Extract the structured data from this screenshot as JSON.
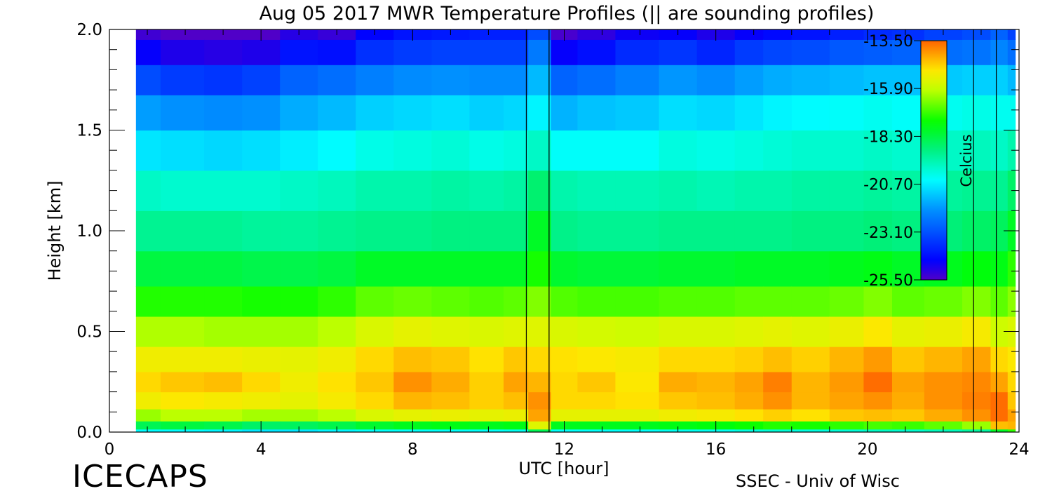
{
  "chart_data": {
    "type": "heatmap",
    "title": "Aug 05 2017 MWR Temperature Profiles (|| are sounding profiles)",
    "xlabel": "UTC [hour]",
    "ylabel": "Height [km]",
    "xlim": [
      0,
      24
    ],
    "ylim": [
      0,
      2.0
    ],
    "x_ticks": [
      0,
      4,
      8,
      12,
      16,
      20,
      24
    ],
    "x_tick_labels": [
      "0",
      "4",
      "8",
      "12",
      "16",
      "20",
      "24"
    ],
    "y_ticks": [
      0,
      0.5,
      1.0,
      1.5,
      2.0
    ],
    "y_tick_labels": [
      "0.0",
      "0.5",
      "1.0",
      "1.5",
      "2.0"
    ],
    "data_start_hour": 0.7,
    "data_end_hour": 23.9,
    "x_hours": [
      0.7,
      2,
      3,
      4,
      5,
      6,
      7,
      8,
      9,
      10,
      10.8,
      11.3,
      12,
      12.7,
      14,
      15,
      16,
      17,
      17.5,
      18.5,
      19.5,
      20.3,
      21,
      22,
      23,
      23.5,
      23.9
    ],
    "heights_km": [
      0.0,
      0.03,
      0.08,
      0.15,
      0.25,
      0.35,
      0.5,
      0.65,
      0.8,
      1.0,
      1.2,
      1.4,
      1.6,
      1.75,
      1.9,
      2.0
    ],
    "temperature_celsius": [
      [
        -20.5,
        -18.5,
        -16.3,
        -15.2,
        -14.8,
        -15.2,
        -16.1,
        -17.3,
        -18.3,
        -19.2,
        -19.8,
        -20.8,
        -21.8,
        -23.2,
        -24.6,
        -25.3
      ],
      [
        -20.5,
        -18.3,
        -16.0,
        -15.0,
        -14.6,
        -15.2,
        -16.1,
        -17.3,
        -18.3,
        -19.2,
        -19.9,
        -20.9,
        -22.0,
        -23.5,
        -24.9,
        -25.5
      ],
      [
        -20.6,
        -18.4,
        -16.0,
        -15.1,
        -14.5,
        -15.2,
        -16.2,
        -17.3,
        -18.3,
        -19.2,
        -19.9,
        -21.0,
        -22.1,
        -23.6,
        -25.0,
        -25.5
      ],
      [
        -20.8,
        -18.7,
        -16.2,
        -15.2,
        -14.8,
        -15.3,
        -16.2,
        -17.4,
        -18.4,
        -19.3,
        -19.9,
        -20.9,
        -22.0,
        -23.4,
        -24.9,
        -25.5
      ],
      [
        -20.8,
        -18.6,
        -16.2,
        -15.4,
        -15.2,
        -15.4,
        -16.2,
        -17.4,
        -18.4,
        -19.3,
        -19.8,
        -20.7,
        -21.6,
        -22.8,
        -24.2,
        -25.0
      ],
      [
        -20.6,
        -18.4,
        -16.0,
        -15.1,
        -14.9,
        -15.2,
        -16.0,
        -17.2,
        -18.3,
        -19.2,
        -19.7,
        -20.5,
        -21.4,
        -22.6,
        -24.3,
        -25.2
      ],
      [
        -20.4,
        -18.1,
        -15.6,
        -14.8,
        -14.6,
        -14.8,
        -15.6,
        -16.8,
        -18.0,
        -19.1,
        -19.5,
        -20.2,
        -21.1,
        -22.3,
        -23.7,
        -24.5
      ],
      [
        -20.4,
        -17.9,
        -15.4,
        -14.4,
        -14.0,
        -14.5,
        -15.4,
        -16.7,
        -18.0,
        -19.1,
        -19.5,
        -20.1,
        -21.0,
        -22.1,
        -23.5,
        -24.2
      ],
      [
        -20.4,
        -17.8,
        -15.3,
        -14.5,
        -14.3,
        -14.6,
        -15.5,
        -16.8,
        -18.0,
        -19.0,
        -19.4,
        -20.0,
        -20.9,
        -22.0,
        -23.4,
        -24.1
      ],
      [
        -20.4,
        -17.9,
        -15.4,
        -14.7,
        -14.7,
        -14.9,
        -15.6,
        -16.9,
        -18.0,
        -19.0,
        -19.5,
        -20.2,
        -21.1,
        -22.1,
        -23.4,
        -24.0
      ],
      [
        -20.3,
        -17.8,
        -15.3,
        -14.5,
        -14.2,
        -14.6,
        -15.5,
        -16.8,
        -18.0,
        -19.0,
        -19.4,
        -20.1,
        -21.0,
        -22.1,
        -23.4,
        -24.0
      ],
      [
        -18.5,
        -15.5,
        -14.2,
        -14.0,
        -14.4,
        -14.8,
        -15.5,
        -16.5,
        -17.4,
        -18.0,
        -18.8,
        -19.8,
        -20.6,
        -21.4,
        -22.4,
        -23.2
      ],
      [
        -20.4,
        -17.9,
        -15.4,
        -14.8,
        -14.8,
        -14.9,
        -15.6,
        -16.9,
        -18.1,
        -19.1,
        -19.5,
        -20.4,
        -21.5,
        -22.8,
        -24.6,
        -25.4
      ],
      [
        -20.4,
        -17.9,
        -15.4,
        -14.8,
        -14.6,
        -15.0,
        -15.7,
        -17.0,
        -18.2,
        -19.2,
        -19.6,
        -20.4,
        -21.3,
        -22.6,
        -24.3,
        -25.1
      ],
      [
        -20.4,
        -17.9,
        -15.4,
        -14.9,
        -15.0,
        -15.1,
        -15.8,
        -17.0,
        -18.2,
        -19.2,
        -19.6,
        -20.4,
        -21.2,
        -22.3,
        -23.8,
        -24.7
      ],
      [
        -20.3,
        -17.8,
        -15.2,
        -14.6,
        -14.3,
        -14.8,
        -15.6,
        -16.9,
        -18.1,
        -19.1,
        -19.5,
        -20.1,
        -20.9,
        -21.9,
        -23.6,
        -24.6
      ],
      [
        -20.3,
        -17.7,
        -15.1,
        -14.5,
        -14.4,
        -14.8,
        -15.6,
        -16.9,
        -18.1,
        -19.1,
        -19.6,
        -20.2,
        -21.0,
        -22.1,
        -23.9,
        -24.9
      ],
      [
        -20.1,
        -17.5,
        -14.9,
        -14.3,
        -14.2,
        -14.7,
        -15.5,
        -16.8,
        -18.0,
        -19.1,
        -19.5,
        -20.1,
        -20.8,
        -21.8,
        -23.5,
        -24.6
      ],
      [
        -20.0,
        -17.3,
        -14.7,
        -14.0,
        -13.8,
        -14.5,
        -15.4,
        -16.8,
        -18.0,
        -19.1,
        -19.5,
        -20.0,
        -20.6,
        -21.6,
        -23.3,
        -24.4
      ],
      [
        -20.1,
        -17.4,
        -14.9,
        -14.4,
        -14.4,
        -14.7,
        -15.5,
        -16.8,
        -18.0,
        -19.0,
        -19.4,
        -19.9,
        -20.5,
        -21.5,
        -23.2,
        -24.2
      ],
      [
        -20.0,
        -17.2,
        -14.6,
        -14.2,
        -14.1,
        -14.4,
        -15.3,
        -16.7,
        -17.9,
        -19.0,
        -19.4,
        -19.9,
        -20.4,
        -21.4,
        -23.0,
        -24.0
      ],
      [
        -19.8,
        -17.0,
        -14.5,
        -14.0,
        -13.6,
        -14.1,
        -15.0,
        -16.5,
        -17.8,
        -18.9,
        -19.3,
        -19.8,
        -20.3,
        -21.3,
        -22.9,
        -23.8
      ],
      [
        -19.9,
        -17.1,
        -14.6,
        -14.3,
        -14.2,
        -14.6,
        -15.4,
        -16.8,
        -18.0,
        -19.0,
        -19.4,
        -19.9,
        -20.4,
        -21.3,
        -22.8,
        -23.7
      ],
      [
        -19.7,
        -16.8,
        -14.3,
        -14.0,
        -14.0,
        -14.4,
        -15.3,
        -16.7,
        -17.9,
        -18.9,
        -19.3,
        -19.8,
        -20.3,
        -21.2,
        -22.6,
        -23.4
      ],
      [
        -19.4,
        -16.3,
        -14.0,
        -13.8,
        -13.9,
        -14.2,
        -15.1,
        -16.5,
        -17.7,
        -18.7,
        -19.2,
        -19.7,
        -20.2,
        -21.1,
        -22.5,
        -23.2
      ],
      [
        -18.0,
        -14.5,
        -13.6,
        -13.6,
        -14.2,
        -14.8,
        -15.8,
        -16.8,
        -17.8,
        -18.6,
        -19.2,
        -19.8,
        -20.3,
        -21.1,
        -22.2,
        -22.8
      ],
      [
        -17.2,
        -14.4,
        -14.2,
        -14.6,
        -14.8,
        -15.0,
        -15.6,
        -16.4,
        -17.2,
        -18.0,
        -18.7,
        -19.5,
        -20.3,
        -21.4,
        -22.6,
        -23.4
      ]
    ],
    "sounding_markers_hours": [
      11.0,
      11.6,
      22.8,
      23.4
    ],
    "colorbar": {
      "label": "Celcius",
      "min": -25.5,
      "max": -13.5,
      "ticks": [
        -13.5,
        -15.9,
        -18.3,
        -20.7,
        -23.1,
        -25.5
      ],
      "tick_labels": [
        "-13.50",
        "-15.90",
        "-18.30",
        "-20.70",
        "-23.10",
        "-25.50"
      ]
    },
    "grid": false,
    "legend": "none"
  },
  "footer": {
    "left_logo_text": "ICECAPS",
    "right_credit": "SSEC - Univ of Wisc"
  }
}
